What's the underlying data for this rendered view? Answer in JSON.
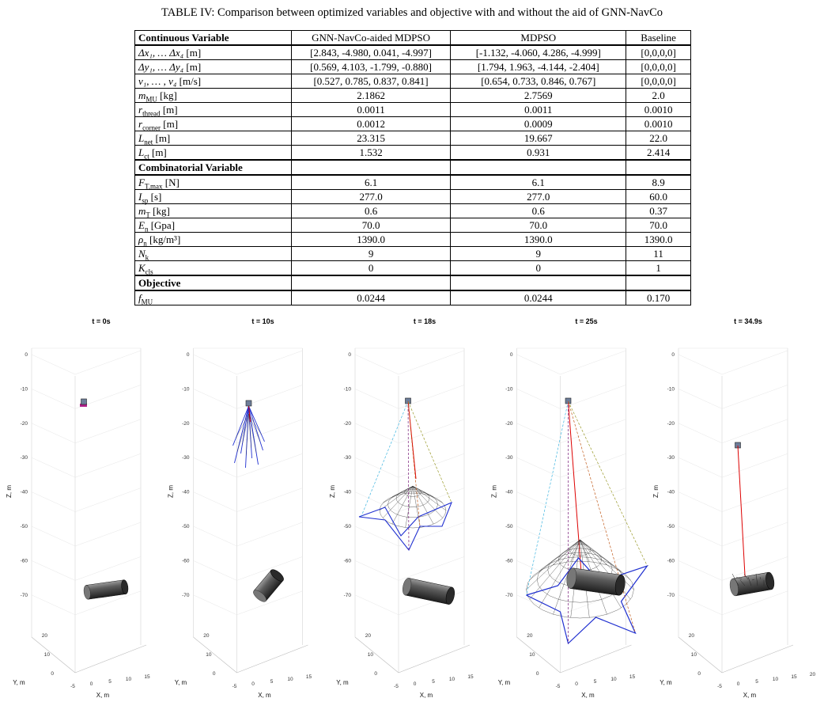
{
  "caption": "TABLE IV: Comparison between optimized variables and objective with and without the aid of GNN-NavCo",
  "table": {
    "header": [
      "Continuous Variable",
      "GNN-NavCo-aided MDPSO",
      "MDPSO",
      "Baseline"
    ],
    "sections": [
      {
        "rows": [
          {
            "variable": {
              "symbol": "Δx₁, … Δx₄",
              "unit": "[m]"
            },
            "values": [
              "[2.843, -4.980, 0.041, -4.997]",
              "[-1.132, -4.060, 4.286, -4.999]",
              "[0,0,0,0]"
            ]
          },
          {
            "variable": {
              "symbol": "Δy₁, … Δy₄",
              "unit": "[m]"
            },
            "values": [
              "[0.569, 4.103, -1.799, -0.880]",
              "[1.794, 1.963, -4.144, -2.404]",
              "[0,0,0,0]"
            ]
          },
          {
            "variable": {
              "symbol": "v₁, … , v₄",
              "unit": "[m/s]"
            },
            "values": [
              "[0.527, 0.785, 0.837, 0.841]",
              "[0.654, 0.733, 0.846, 0.767]",
              "[0,0,0,0]"
            ]
          },
          {
            "variable": {
              "symbol": "m",
              "sub": "MU",
              "unit": "[kg]"
            },
            "values": [
              "2.1862",
              "2.7569",
              "2.0"
            ]
          },
          {
            "variable": {
              "symbol": "r",
              "sub": "thread",
              "unit": "[m]"
            },
            "values": [
              "0.0011",
              "0.0011",
              "0.0010"
            ]
          },
          {
            "variable": {
              "symbol": "r",
              "sub": "corner",
              "unit": "[m]"
            },
            "values": [
              "0.0012",
              "0.0009",
              "0.0010"
            ]
          },
          {
            "variable": {
              "symbol": "L",
              "sub": "net",
              "unit": "[m]"
            },
            "values": [
              "23.315",
              "19.667",
              "22.0"
            ]
          },
          {
            "variable": {
              "symbol": "L",
              "sub": "ct",
              "unit": "[m]"
            },
            "values": [
              "1.532",
              "0.931",
              "2.414"
            ]
          }
        ]
      },
      {
        "title": "Combinatorial Variable",
        "rows": [
          {
            "variable": {
              "symbol": "F",
              "sub": "T,max",
              "unit": "[N]"
            },
            "values": [
              "6.1",
              "6.1",
              "8.9"
            ]
          },
          {
            "variable": {
              "symbol": "I",
              "sub": "sp",
              "unit": "[s]"
            },
            "values": [
              "277.0",
              "277.0",
              "60.0"
            ]
          },
          {
            "variable": {
              "symbol": "m",
              "sub": "T",
              "unit": "[kg]"
            },
            "values": [
              "0.6",
              "0.6",
              "0.37"
            ]
          },
          {
            "variable": {
              "symbol": "E",
              "sub": "n",
              "unit": "[Gpa]"
            },
            "values": [
              "70.0",
              "70.0",
              "70.0"
            ]
          },
          {
            "variable": {
              "symbol": "ρ",
              "sub": "n",
              "unit": "[kg/m³]"
            },
            "values": [
              "1390.0",
              "1390.0",
              "1390.0"
            ]
          },
          {
            "variable": {
              "symbol": "N",
              "sub": "k"
            },
            "values": [
              "9",
              "9",
              "11"
            ]
          },
          {
            "variable": {
              "symbol": "K",
              "sub": "cls"
            },
            "values": [
              "0",
              "0",
              "1"
            ]
          }
        ]
      },
      {
        "title": "Objective",
        "rows": [
          {
            "variable": {
              "symbol": "f",
              "sub": "MU"
            },
            "values": [
              "0.0244",
              "0.0244",
              "0.170"
            ]
          }
        ]
      }
    ]
  },
  "figure": {
    "panels": [
      {
        "title": "t = 0s",
        "z_label": "Z, m",
        "y_label": "Y, m",
        "x_label": "X, m",
        "z_ticks": [
          0,
          -10,
          -20,
          -30,
          -40,
          -50,
          -60,
          -70
        ],
        "y_ticks": [
          20,
          10,
          0
        ],
        "x_ticks": [
          -5,
          0,
          5,
          10,
          15
        ]
      },
      {
        "title": "t = 10s",
        "z_label": "Z, m",
        "y_label": "Y, m",
        "x_label": "X, m",
        "z_ticks": [
          0,
          -10,
          -20,
          -30,
          -40,
          -50,
          -60,
          -70
        ],
        "y_ticks": [
          20,
          10,
          0
        ],
        "x_ticks": [
          -5,
          0,
          5,
          10,
          15
        ]
      },
      {
        "title": "t = 18s",
        "z_label": "Z, m",
        "y_label": "Y, m",
        "x_label": "X, m",
        "z_ticks": [
          0,
          -10,
          -20,
          -30,
          -40,
          -50,
          -60,
          -70
        ],
        "y_ticks": [
          20,
          10,
          0
        ],
        "x_ticks": [
          -5,
          0,
          5,
          10,
          15
        ]
      },
      {
        "title": "t = 25s",
        "z_label": "Z, m",
        "y_label": "Y, m",
        "x_label": "X, m",
        "z_ticks": [
          0,
          -10,
          -20,
          -30,
          -40,
          -50,
          -60,
          -70
        ],
        "y_ticks": [
          20,
          10,
          0
        ],
        "x_ticks": [
          -5,
          0,
          5,
          10,
          15
        ]
      },
      {
        "title": "t = 34.9s",
        "z_label": "Z, m",
        "y_label": "Y, m",
        "x_label": "X, m",
        "z_ticks": [
          0,
          -10,
          -20,
          -30,
          -40,
          -50,
          -60,
          -70
        ],
        "y_ticks": [
          20,
          10,
          0
        ],
        "x_ticks": [
          -5,
          0,
          5,
          10,
          15,
          20
        ]
      }
    ]
  }
}
